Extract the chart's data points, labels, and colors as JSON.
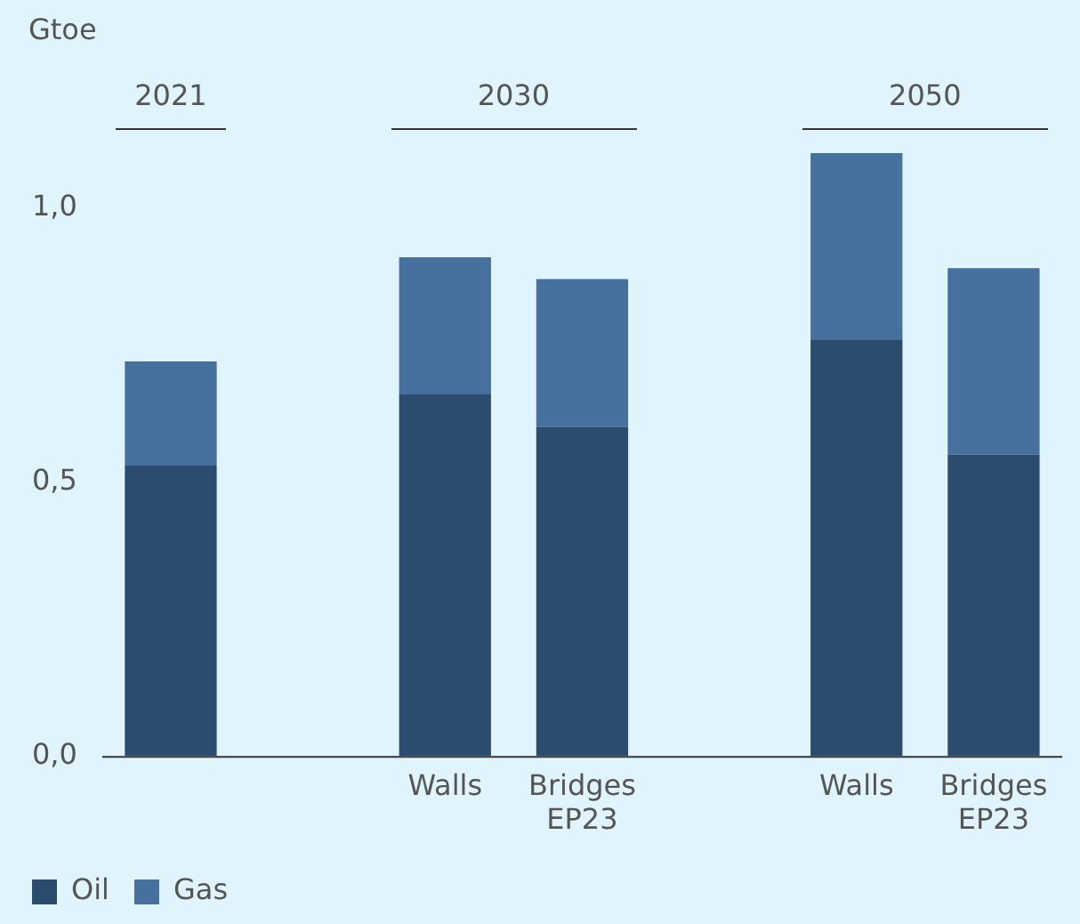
{
  "chart_data": {
    "type": "bar",
    "ylabel": "Gtoe",
    "stacked": true,
    "categories": [
      null,
      null,
      "Walls",
      "Bridges\nEP23",
      null,
      "Walls",
      "Bridges\nEP23"
    ],
    "series": [
      {
        "name": "Oil",
        "color": "#2b4c6f",
        "values": [
          0.53,
          null,
          0.66,
          0.6,
          null,
          0.76,
          0.55
        ]
      },
      {
        "name": "Gas",
        "color": "#46709e",
        "values": [
          0.19,
          null,
          0.25,
          0.27,
          null,
          0.34,
          0.34
        ]
      }
    ],
    "annotations": [
      "2021",
      "2030",
      "2050"
    ],
    "ylim": [
      0,
      1.1
    ],
    "yticks": [
      {
        "value": 0,
        "label": "0,0"
      },
      {
        "value": 0.5,
        "label": "0,5"
      },
      {
        "value": 1,
        "label": "1,0"
      }
    ],
    "grid": false,
    "legend": "bottom left"
  }
}
